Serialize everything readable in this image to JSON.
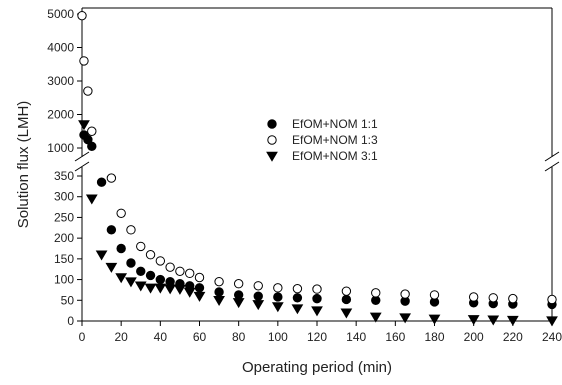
{
  "chart_data": {
    "type": "scatter",
    "title": "",
    "xlabel": "Operating period (min)",
    "ylabel": "Solution flux (LMH)",
    "xlim": [
      0,
      240
    ],
    "x_ticks": [
      0,
      20,
      40,
      60,
      80,
      100,
      120,
      140,
      160,
      180,
      200,
      220,
      240
    ],
    "y_axis_break": true,
    "y_lower_range": [
      0,
      350
    ],
    "y_lower_ticks": [
      0,
      50,
      100,
      150,
      200,
      250,
      300,
      350
    ],
    "y_upper_range": [
      600,
      5000
    ],
    "y_upper_ticks": [
      1000,
      2000,
      3000,
      4000,
      5000
    ],
    "grid": false,
    "legend_position": "center",
    "series": [
      {
        "name": "EfOM+NOM 1:1",
        "marker": "filled-circle",
        "color": "#000000",
        "x": [
          1,
          3,
          5,
          10,
          15,
          20,
          25,
          30,
          35,
          40,
          45,
          50,
          55,
          60,
          70,
          80,
          90,
          100,
          110,
          120,
          135,
          150,
          165,
          180,
          200,
          210,
          220,
          240
        ],
        "y": [
          1390,
          1250,
          1050,
          335,
          220,
          175,
          140,
          120,
          110,
          100,
          95,
          90,
          85,
          80,
          70,
          63,
          60,
          58,
          56,
          54,
          52,
          50,
          48,
          46,
          44,
          42,
          41,
          40
        ]
      },
      {
        "name": "EfOM+NOM 1:3",
        "marker": "open-circle",
        "color": "#000000",
        "x": [
          0,
          1,
          3,
          5,
          15,
          20,
          25,
          30,
          35,
          40,
          45,
          50,
          55,
          60,
          70,
          80,
          90,
          100,
          110,
          120,
          135,
          150,
          165,
          180,
          200,
          210,
          220,
          240
        ],
        "y": [
          4950,
          3600,
          2700,
          1500,
          345,
          260,
          220,
          180,
          160,
          145,
          130,
          120,
          115,
          105,
          95,
          90,
          85,
          80,
          78,
          77,
          72,
          68,
          65,
          63,
          58,
          56,
          54,
          52
        ]
      },
      {
        "name": "EfOM+NOM 3:1",
        "marker": "filled-triangle-down",
        "color": "#000000",
        "x": [
          1,
          5,
          10,
          15,
          20,
          25,
          30,
          35,
          40,
          45,
          50,
          55,
          60,
          70,
          80,
          90,
          100,
          110,
          120,
          135,
          150,
          165,
          180,
          200,
          210,
          220,
          240
        ],
        "y": [
          1700,
          295,
          160,
          130,
          105,
          95,
          85,
          80,
          80,
          78,
          77,
          70,
          60,
          50,
          45,
          40,
          35,
          30,
          25,
          20,
          10,
          8,
          5,
          4,
          3,
          2,
          1
        ]
      }
    ]
  }
}
